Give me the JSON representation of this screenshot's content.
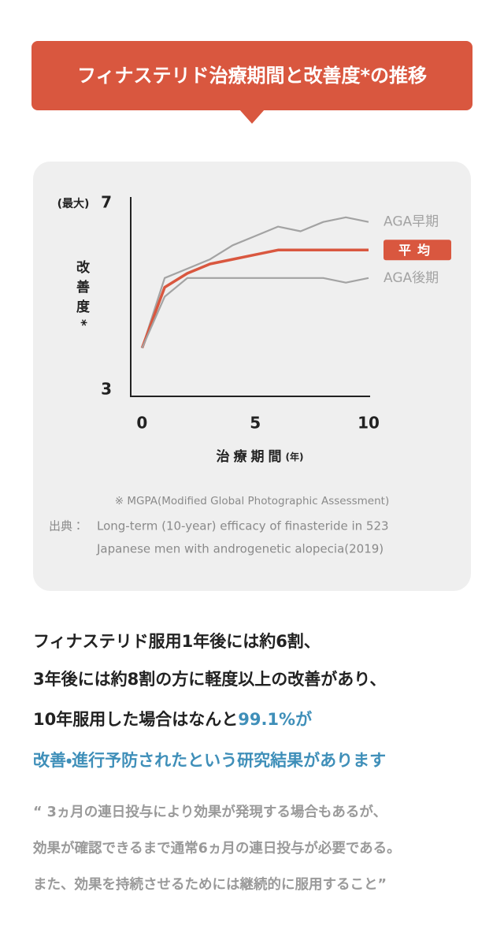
{
  "header": {
    "title": "フィナステリド治療期間と改善度*の推移"
  },
  "chart_data": {
    "type": "line",
    "y_axis_note": "(最大)",
    "ylabel": "改善度*",
    "xlabel": "治療期間",
    "xlabel_unit": "(年)",
    "x": [
      0,
      1,
      2,
      3,
      4,
      5,
      6,
      7,
      8,
      9,
      10
    ],
    "xlim": [
      -0.5,
      10
    ],
    "xticks": [
      0,
      5,
      10
    ],
    "ylim": [
      3,
      7
    ],
    "yticks": [
      3,
      7
    ],
    "series": [
      {
        "name": "AGA早期",
        "color": "#a3a3a3",
        "highlight": false,
        "values": [
          3.9,
          5.4,
          5.6,
          5.8,
          6.1,
          6.3,
          6.5,
          6.4,
          6.6,
          6.7,
          6.6
        ]
      },
      {
        "name": "平均",
        "color": "#d9573f",
        "highlight": true,
        "values": [
          3.9,
          5.2,
          5.5,
          5.7,
          5.8,
          5.9,
          6.0,
          6.0,
          6.0,
          6.0,
          6.0
        ]
      },
      {
        "name": "AGA後期",
        "color": "#a3a3a3",
        "highlight": false,
        "values": [
          3.9,
          5.0,
          5.4,
          5.4,
          5.4,
          5.4,
          5.4,
          5.4,
          5.4,
          5.3,
          5.4
        ]
      }
    ]
  },
  "note": "※ MGPA(Modified Global Photographic Assessment)",
  "source": {
    "label": "出典：",
    "lines": [
      "Long-term (10-year) efficacy of finasteride in 523",
      "Japanese men with androgenetic alopecia(2019)"
    ]
  },
  "body": {
    "lines": [
      [
        {
          "text": "フィナステリド服用1年後には約6割、",
          "highlight": false
        }
      ],
      [
        {
          "text": "3年後には約8割の方に軽度以上の改善があり、",
          "highlight": false
        }
      ],
      [
        {
          "text": "10年服用した場合はなんと",
          "highlight": false
        },
        {
          "text": "99.1%が",
          "highlight": true
        }
      ],
      [
        {
          "text": "改善・進行予防されたという研究結果があります",
          "highlight": true
        }
      ]
    ]
  },
  "quote": {
    "lines": [
      "“ 3ヵ月の連日投与により効果が発現する場合もあるが、",
      "効果が確認できるまで通常6ヵ月の連日投与が必要である。",
      "また、効果を持続させるためには継続的に服用すること”"
    ]
  }
}
